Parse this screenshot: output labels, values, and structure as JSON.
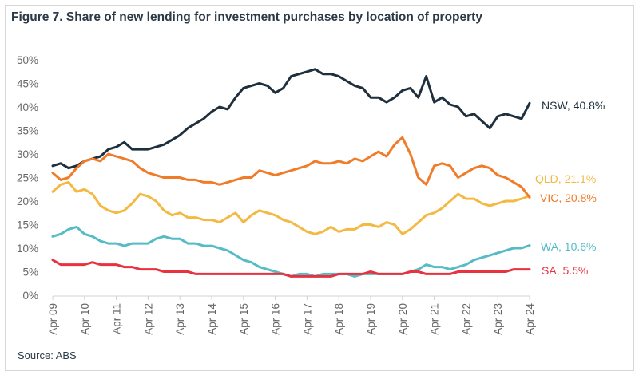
{
  "chart_data": {
    "type": "line",
    "title": "Figure 7. Share of new lending for investment purchases by location of property",
    "source": "Source: ABS",
    "xlabel": "",
    "ylabel": "",
    "ylim": [
      0,
      50
    ],
    "yticks": [
      "0%",
      "5%",
      "10%",
      "15%",
      "20%",
      "25%",
      "30%",
      "35%",
      "40%",
      "45%",
      "50%"
    ],
    "xticks": [
      "Apr 09",
      "Apr 10",
      "Apr 11",
      "Apr 12",
      "Apr 13",
      "Apr 14",
      "Apr 15",
      "Apr 16",
      "Apr 17",
      "Apr 18",
      "Apr 19",
      "Apr 20",
      "Apr 21",
      "Apr 22",
      "Apr 23",
      "Apr 24"
    ],
    "grid": false,
    "legend": "end-of-line labels",
    "x": [
      "2009-04",
      "2009-07",
      "2009-10",
      "2010-01",
      "2010-04",
      "2010-07",
      "2010-10",
      "2011-01",
      "2011-04",
      "2011-07",
      "2011-10",
      "2012-01",
      "2012-04",
      "2012-07",
      "2012-10",
      "2013-01",
      "2013-04",
      "2013-07",
      "2013-10",
      "2014-01",
      "2014-04",
      "2014-07",
      "2014-10",
      "2015-01",
      "2015-04",
      "2015-07",
      "2015-10",
      "2016-01",
      "2016-04",
      "2016-07",
      "2016-10",
      "2017-01",
      "2017-04",
      "2017-07",
      "2017-10",
      "2018-01",
      "2018-04",
      "2018-07",
      "2018-10",
      "2019-01",
      "2019-04",
      "2019-07",
      "2019-10",
      "2020-01",
      "2020-04",
      "2020-07",
      "2020-10",
      "2021-01",
      "2021-04",
      "2021-07",
      "2021-10",
      "2022-01",
      "2022-04",
      "2022-07",
      "2022-10",
      "2023-01",
      "2023-04",
      "2023-07",
      "2023-10",
      "2024-01",
      "2024-04"
    ],
    "series": [
      {
        "name": "NSW",
        "label": "NSW, 40.8%",
        "color": "#1e2f3d",
        "values": [
          27.5,
          28,
          27,
          27.5,
          28.5,
          29,
          29.5,
          31,
          31.5,
          32.5,
          31,
          31,
          31,
          31.5,
          32,
          33,
          34,
          35.5,
          36.5,
          37.5,
          39,
          40,
          39.5,
          42,
          44,
          44.5,
          45,
          44.5,
          43,
          44,
          46.5,
          47,
          47.5,
          48,
          47,
          47,
          46.5,
          45.5,
          44.5,
          44,
          42,
          42,
          41,
          42,
          43.5,
          44,
          42,
          46.5,
          41,
          42,
          40.5,
          40,
          38,
          38.5,
          37,
          35.5,
          38,
          38.5,
          38,
          37.5,
          40.8
        ]
      },
      {
        "name": "QLD",
        "label": "QLD, 21.1%",
        "color": "#f3b942",
        "values": [
          22,
          23.5,
          24,
          22,
          22.5,
          21.5,
          19,
          18,
          17.5,
          18,
          19.5,
          21.5,
          21,
          20,
          18,
          17,
          17.5,
          16.5,
          16.5,
          16,
          16,
          15.5,
          16.5,
          17.5,
          15.5,
          17,
          18,
          17.5,
          17,
          16,
          15.5,
          14.5,
          13.5,
          13,
          13.5,
          14.5,
          13.5,
          14,
          14,
          15,
          15,
          14.5,
          15.5,
          15,
          13,
          14,
          15.5,
          17,
          17.5,
          18.5,
          20,
          21.5,
          20.5,
          20.5,
          19.5,
          19,
          19.5,
          20,
          20,
          20.5,
          21.1
        ]
      },
      {
        "name": "VIC",
        "label": "VIC, 20.8%",
        "color": "#f07c2a",
        "values": [
          26,
          24.5,
          25,
          27,
          28.5,
          29,
          28.5,
          30,
          29.5,
          29,
          28.5,
          27,
          26,
          25.5,
          25,
          25,
          25,
          24.5,
          24.5,
          24,
          24,
          23.5,
          24,
          24.5,
          25,
          25,
          26.5,
          26,
          25.5,
          26,
          26.5,
          27,
          27.5,
          28.5,
          28,
          28,
          28.5,
          28,
          29,
          28.5,
          29.5,
          30.5,
          29.5,
          32,
          33.5,
          30,
          25,
          23.5,
          27.5,
          28,
          27.5,
          25,
          26,
          27,
          27.5,
          27,
          25.5,
          25,
          24,
          23,
          20.8
        ]
      },
      {
        "name": "WA",
        "label": "WA, 10.6%",
        "color": "#55bcc6",
        "values": [
          12.5,
          13,
          14,
          14.5,
          13,
          12.5,
          11.5,
          11,
          11,
          10.5,
          11,
          11,
          11,
          12,
          12.5,
          12,
          12,
          11,
          11,
          10.5,
          10.5,
          10,
          9.5,
          8.5,
          7.5,
          7,
          6,
          5.5,
          5,
          4.5,
          4,
          4.5,
          4.5,
          4,
          4.5,
          4.5,
          4.5,
          4.5,
          4,
          4.5,
          4.5,
          4.5,
          4.5,
          4.5,
          4.5,
          5,
          5.5,
          6.5,
          6,
          6,
          5.5,
          6,
          6.5,
          7.5,
          8,
          8.5,
          9,
          9.5,
          10,
          10,
          10.6
        ]
      },
      {
        "name": "SA",
        "label": "SA, 5.5%",
        "color": "#e8323f",
        "values": [
          7.5,
          6.5,
          6.5,
          6.5,
          6.5,
          7,
          6.5,
          6.5,
          6.5,
          6,
          6,
          5.5,
          5.5,
          5.5,
          5,
          5,
          5,
          5,
          4.5,
          4.5,
          4.5,
          4.5,
          4.5,
          4.5,
          4.5,
          4.5,
          4.5,
          4.5,
          4.5,
          4.5,
          4,
          4,
          4,
          4,
          4,
          4,
          4.5,
          4.5,
          4.5,
          4.5,
          5,
          4.5,
          4.5,
          4.5,
          4.5,
          5,
          5,
          4.5,
          4.5,
          4.5,
          4.5,
          5,
          5,
          5,
          5,
          5,
          5,
          5,
          5.5,
          5.5,
          5.5
        ]
      }
    ]
  }
}
